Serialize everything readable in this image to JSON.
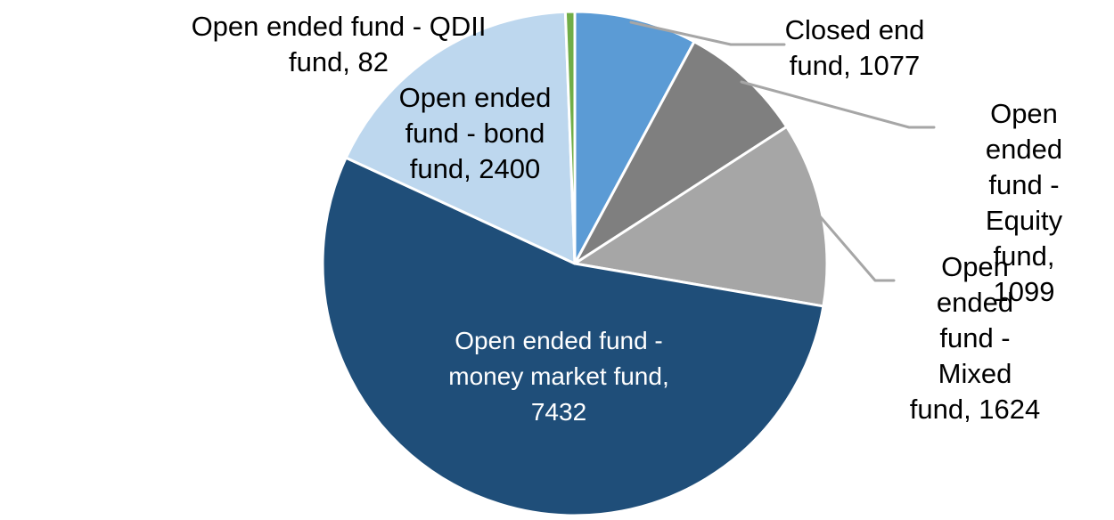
{
  "figure": {
    "background_color": "#FFFFFF"
  },
  "chart_data": {
    "type": "pie",
    "total": 13714,
    "start_angle_deg": 0,
    "direction": "clockwise",
    "legend_position": "none",
    "slice_border_color": "#FFFFFF",
    "leader_line_color": "#A6A6A6",
    "label_text_color_default": "#000000",
    "slices": [
      {
        "label": "Closed end fund",
        "value": 1077,
        "color": "#5B9BD5",
        "label_display": "Closed end\nfund, 1077",
        "label_text_color": "#000000",
        "label_placement": "outside"
      },
      {
        "label": "Open ended fund - Equity fund",
        "value": 1099,
        "color": "#7F7F7F",
        "label_display": "Open ended\nfund - Equity\nfund, 1099",
        "label_text_color": "#000000",
        "label_placement": "outside"
      },
      {
        "label": "Open ended fund - Mixed fund",
        "value": 1624,
        "color": "#A6A6A6",
        "label_display": "Open ended\nfund - Mixed\nfund, 1624",
        "label_text_color": "#000000",
        "label_placement": "outside"
      },
      {
        "label": "Open ended fund - money market fund",
        "value": 7432,
        "color": "#1F4E79",
        "label_display": "Open ended fund -\nmoney market fund,\n7432",
        "label_text_color": "#FFFFFF",
        "label_placement": "inside"
      },
      {
        "label": "Open ended fund - bond fund",
        "value": 2400,
        "color": "#BDD7EE",
        "label_display": "Open ended\nfund - bond\nfund, 2400",
        "label_text_color": "#000000",
        "label_placement": "outside"
      },
      {
        "label": "Open ended fund - QDII fund",
        "value": 82,
        "color": "#70AD47",
        "label_display": "Open ended fund - QDII\nfund, 82",
        "label_text_color": "#000000",
        "label_placement": "outside"
      }
    ]
  }
}
